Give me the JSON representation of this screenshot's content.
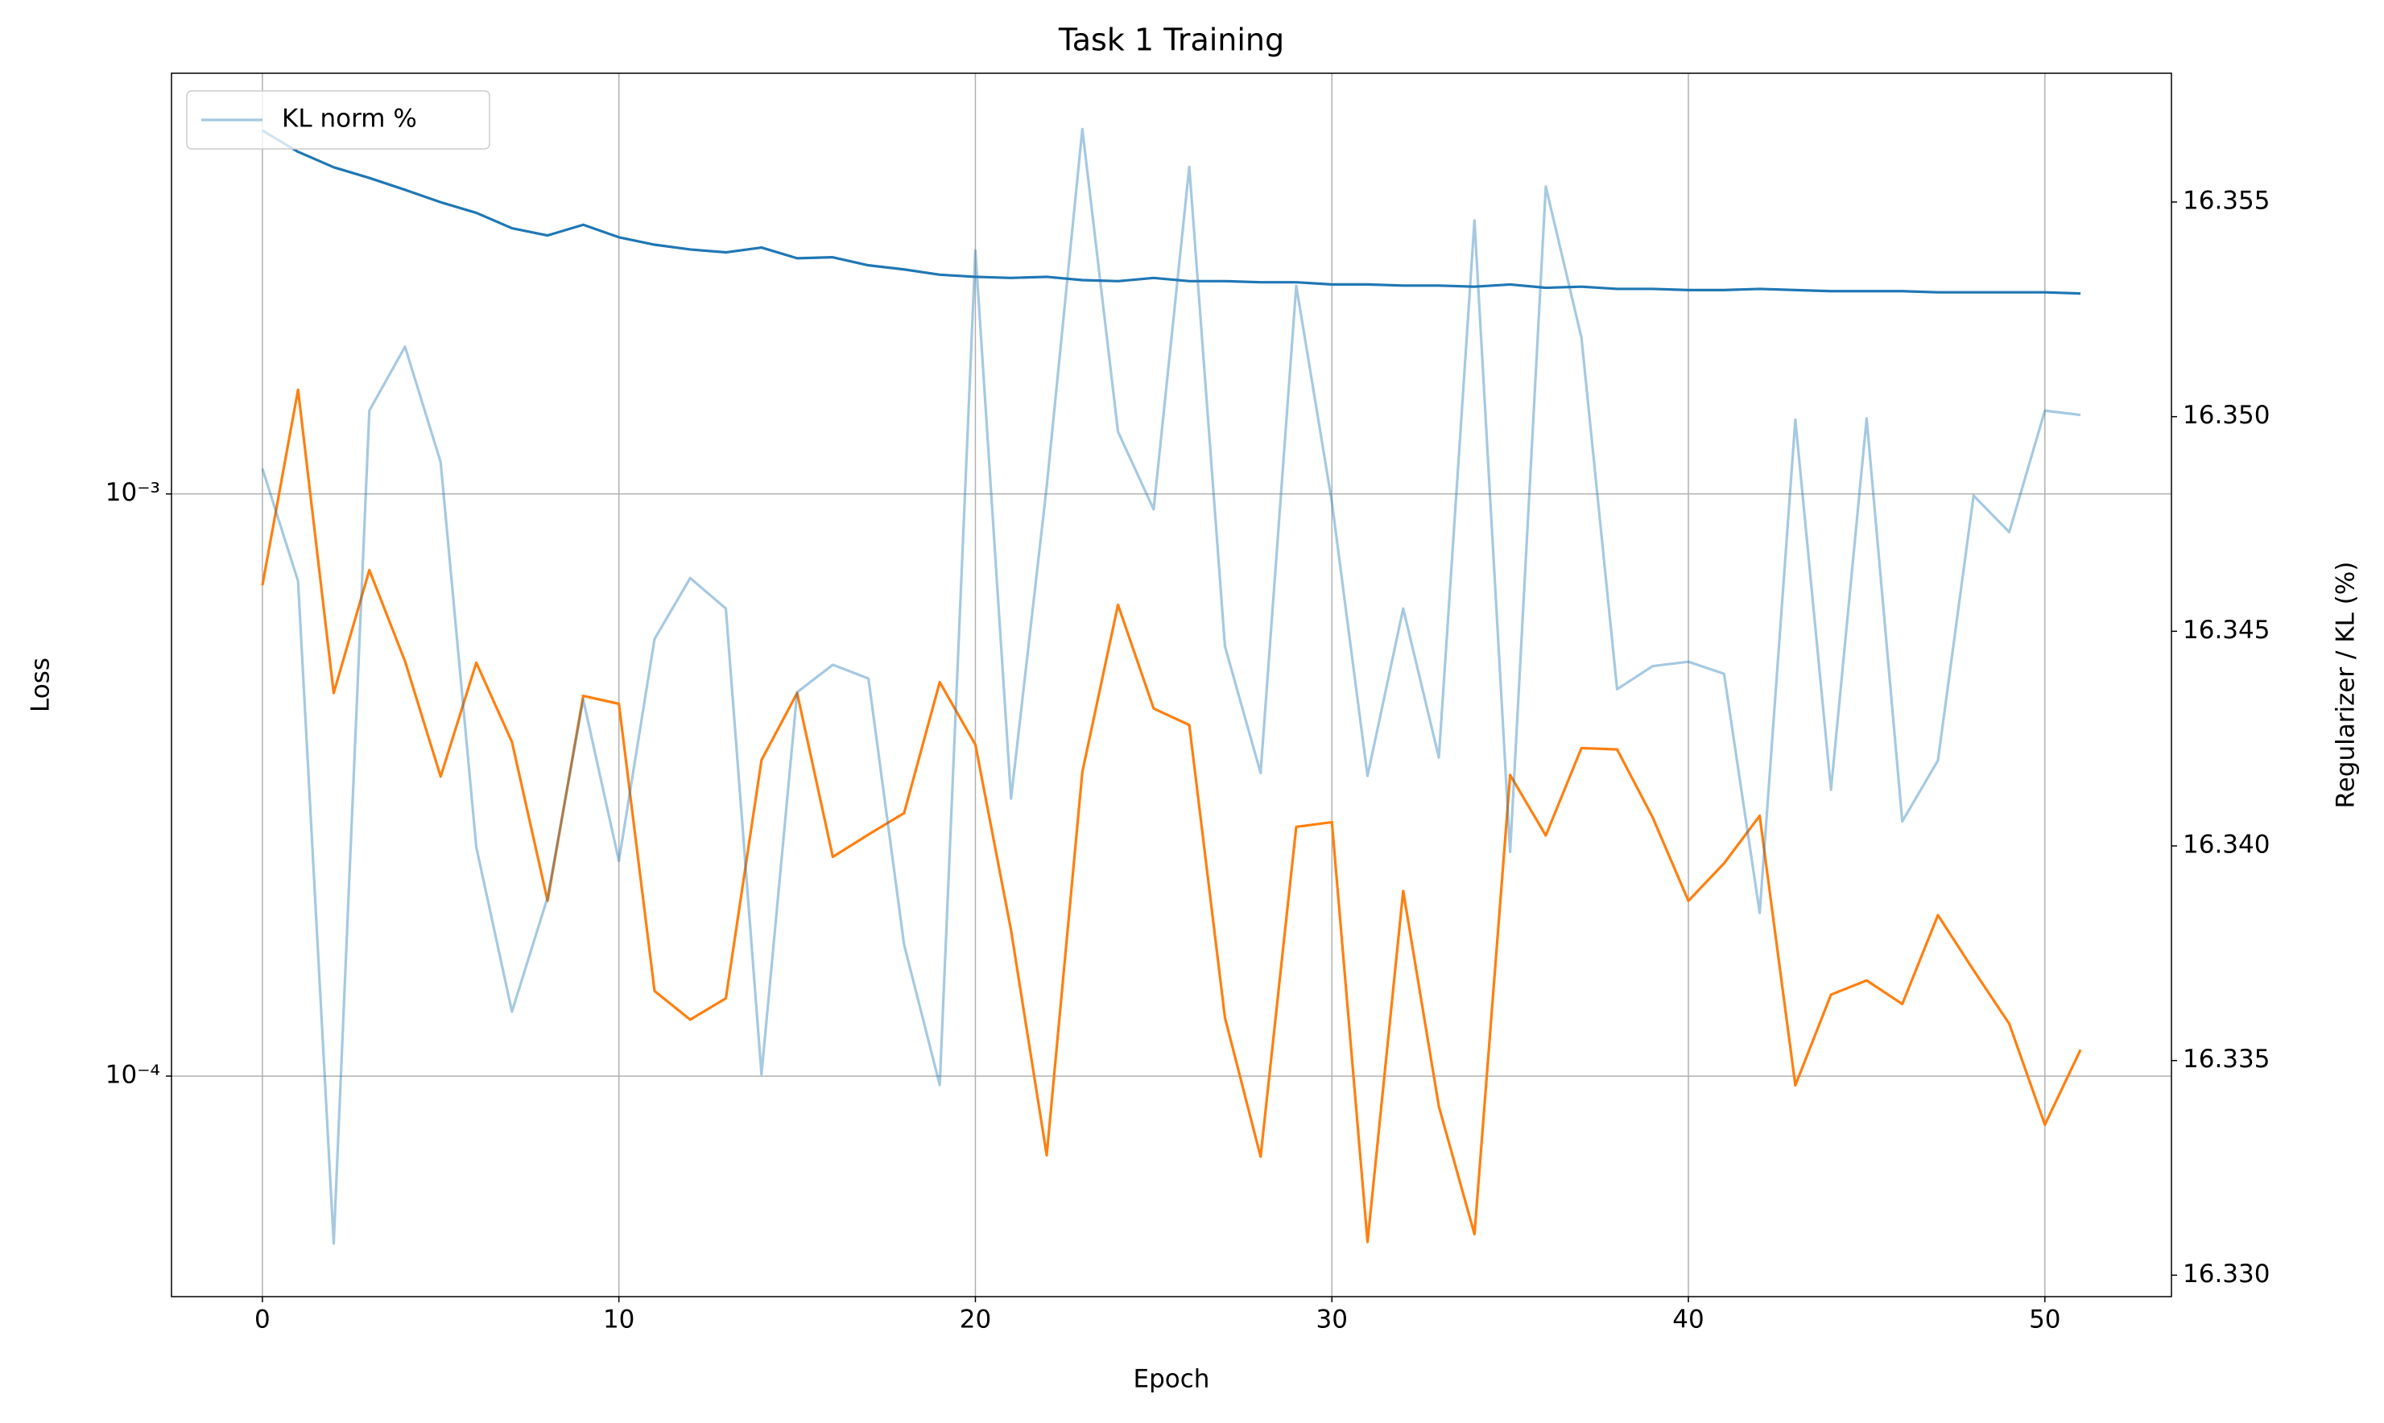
{
  "chart_data": {
    "type": "line",
    "title": "Task 1 Training",
    "xlabel": "Epoch",
    "ylabel": "Loss",
    "y2label": "Regularizer / KL (%)",
    "x": [
      0,
      1,
      2,
      3,
      4,
      5,
      6,
      7,
      8,
      9,
      10,
      11,
      12,
      13,
      14,
      15,
      16,
      17,
      18,
      19,
      20,
      21,
      22,
      23,
      24,
      25,
      26,
      27,
      28,
      29,
      30,
      31,
      32,
      33,
      34,
      35,
      36,
      37,
      38,
      39,
      40,
      41,
      42,
      43,
      44,
      45,
      46,
      47,
      48,
      49,
      50,
      51
    ],
    "xlim": [
      -2.55,
      53.55
    ],
    "xticks": [
      0,
      10,
      20,
      30,
      40,
      50
    ],
    "ylim": [
      4.18e-05,
      0.00528
    ],
    "yscale": "log",
    "yticks": [
      {
        "value": 0.0001,
        "label": "10⁻⁴"
      },
      {
        "value": 0.001,
        "label": "10⁻³"
      }
    ],
    "y2lim": [
      16.3295,
      16.358
    ],
    "y2ticks": [
      {
        "value": 16.33,
        "label": "16.330"
      },
      16.335,
      {
        "value": 16.34,
        "label": "16.340"
      },
      16.345,
      {
        "value": 16.35,
        "label": "16.350"
      },
      16.355
    ],
    "grid": true,
    "legend_loc": "upper left",
    "series": [
      {
        "color": "#1f77b4",
        "opacity": 1,
        "values": [
          0.00421,
          0.00387,
          0.00364,
          0.00349,
          0.00333,
          0.00317,
          0.00304,
          0.00286,
          0.00278,
          0.0029,
          0.00276,
          0.00268,
          0.00263,
          0.0026,
          0.00265,
          0.00254,
          0.00255,
          0.00247,
          0.00243,
          0.00238,
          0.00236,
          0.00235,
          0.00236,
          0.00233,
          0.00232,
          0.00235,
          0.00232,
          0.00232,
          0.00231,
          0.00231,
          0.00229,
          0.00229,
          0.00228,
          0.00228,
          0.00227,
          0.00229,
          0.00226,
          0.00227,
          0.00225,
          0.00225,
          0.00224,
          0.00224,
          0.00225,
          0.00224,
          0.00223,
          0.00223,
          0.00223,
          0.00222,
          0.00222,
          0.00222,
          0.00222,
          0.00221
        ]
      },
      {
        "color": "#ff7f0e",
        "opacity": 1,
        "values": [
          0.000697,
          0.00151,
          0.000455,
          0.00074,
          0.000516,
          0.000327,
          0.000513,
          0.000375,
          0.0002,
          0.00045,
          0.000436,
          0.00014,
          0.000125,
          0.000136,
          0.000349,
          0.000455,
          0.000238,
          0.00026,
          0.000283,
          0.000475,
          0.000371,
          0.000178,
          7.31e-05,
          0.000333,
          0.000645,
          0.000428,
          0.000401,
          0.000126,
          7.27e-05,
          0.000268,
          0.000273,
          5.19e-05,
          0.000208,
          8.87e-05,
          5.35e-05,
          0.000329,
          0.000259,
          0.000366,
          0.000364,
          0.000278,
          0.0002,
          0.000232,
          0.00028,
          9.64e-05,
          0.000138,
          0.000146,
          0.000133,
          0.000189,
          0.000152,
          0.000123,
          8.25e-05,
          0.000111
        ]
      },
      {
        "name": "KL norm %",
        "axis": "y2",
        "color": "#1f77b4",
        "opacity": 0.4,
        "values": [
          16.34879,
          16.34617,
          16.33074,
          16.35014,
          16.35163,
          16.34894,
          16.33997,
          16.33614,
          16.3388,
          16.34341,
          16.33965,
          16.34482,
          16.34624,
          16.34553,
          16.33468,
          16.34358,
          16.34422,
          16.3439,
          16.3377,
          16.33443,
          16.35387,
          16.3411,
          16.34837,
          16.3567,
          16.34965,
          16.34784,
          16.35582,
          16.34465,
          16.3417,
          16.35305,
          16.34801,
          16.34163,
          16.34553,
          16.34206,
          16.35457,
          16.33986,
          16.35536,
          16.35184,
          16.34365,
          16.34419,
          16.34429,
          16.34401,
          16.33844,
          16.34993,
          16.34131,
          16.34996,
          16.34057,
          16.34199,
          16.34816,
          16.34731,
          16.35014,
          16.35004
        ]
      }
    ]
  }
}
